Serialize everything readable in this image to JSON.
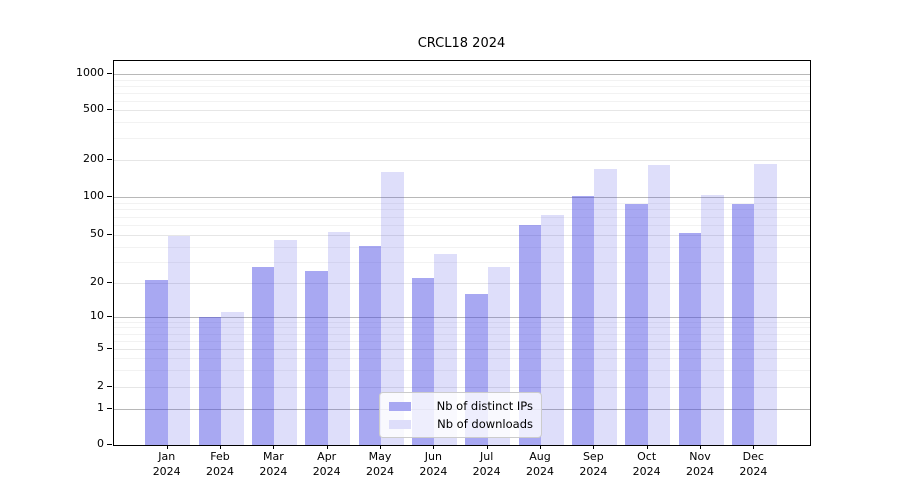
{
  "title": "CRCL18 2024",
  "chart_data": {
    "type": "bar",
    "title": "CRCL18 2024",
    "categories": [
      "Jan",
      "Feb",
      "Mar",
      "Apr",
      "May",
      "Jun",
      "Jul",
      "Aug",
      "Sep",
      "Oct",
      "Nov",
      "Dec"
    ],
    "category_year": "2024",
    "series": [
      {
        "name": "Nb of distinct IPs",
        "values": [
          21,
          10,
          27,
          25,
          41,
          22,
          16,
          60,
          102,
          88,
          52,
          88
        ],
        "color": "#3e3ee2",
        "alpha": 0.45
      },
      {
        "name": "Nb of downloads",
        "values": [
          49,
          11,
          46,
          53,
          160,
          35,
          27,
          72,
          170,
          183,
          104,
          187
        ],
        "color": "#3e3ee2",
        "alpha": 0.17
      }
    ],
    "xlabel": "",
    "ylabel": "",
    "y_scale": "symlog-like",
    "y_ticks": [
      0,
      1,
      2,
      5,
      10,
      20,
      50,
      100,
      200,
      500,
      1000
    ],
    "y_minor_ticks": [
      3,
      4,
      6,
      7,
      8,
      9,
      30,
      40,
      60,
      70,
      80,
      90,
      300,
      400,
      600,
      700,
      800,
      900
    ],
    "ylim": [
      0,
      1290
    ],
    "grid": true,
    "legend_position": "lower center",
    "legend_labels": [
      "Nb of distinct IPs",
      "Nb of downloads"
    ],
    "grid_color_pow10": "#b8b8b8",
    "grid_color_major": "#e6e6e6",
    "grid_color_minor": "#f2f2f2"
  }
}
